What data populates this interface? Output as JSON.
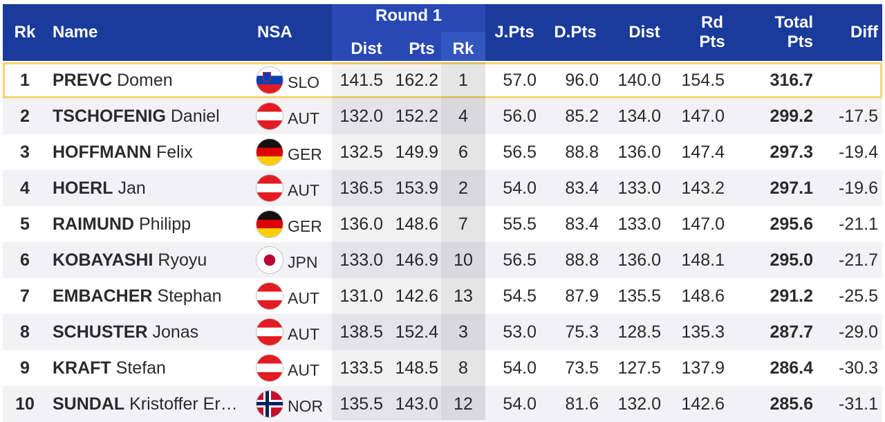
{
  "header": {
    "rk": "Rk",
    "name": "Name",
    "nsa": "NSA",
    "round1": "Round 1",
    "r1_dist": "Dist",
    "r1_pts": "Pts",
    "r1_rk": "Rk",
    "jpts": "J.Pts",
    "dpts": "D.Pts",
    "dist": "Dist",
    "rd_pts_1": "Rd",
    "rd_pts_2": "Pts",
    "total_1": "Total",
    "total_2": "Pts",
    "diff": "Diff"
  },
  "rows": [
    {
      "rk": "1",
      "last": "PREVC",
      "first": "Domen",
      "flag": "slo",
      "nsa": "SLO",
      "r1_dist": "141.5",
      "r1_pts": "162.2",
      "r1_rk": "1",
      "jpts": "57.0",
      "dpts": "96.0",
      "dist": "140.0",
      "rd_pts": "154.5",
      "total": "316.7",
      "diff": ""
    },
    {
      "rk": "2",
      "last": "TSCHOFENIG",
      "first": "Daniel",
      "flag": "aut",
      "nsa": "AUT",
      "r1_dist": "132.0",
      "r1_pts": "152.2",
      "r1_rk": "4",
      "jpts": "56.0",
      "dpts": "85.2",
      "dist": "134.0",
      "rd_pts": "147.0",
      "total": "299.2",
      "diff": "-17.5"
    },
    {
      "rk": "3",
      "last": "HOFFMANN",
      "first": "Felix",
      "flag": "ger",
      "nsa": "GER",
      "r1_dist": "132.5",
      "r1_pts": "149.9",
      "r1_rk": "6",
      "jpts": "56.5",
      "dpts": "88.8",
      "dist": "136.0",
      "rd_pts": "147.4",
      "total": "297.3",
      "diff": "-19.4"
    },
    {
      "rk": "4",
      "last": "HOERL",
      "first": "Jan",
      "flag": "aut",
      "nsa": "AUT",
      "r1_dist": "136.5",
      "r1_pts": "153.9",
      "r1_rk": "2",
      "jpts": "54.0",
      "dpts": "83.4",
      "dist": "133.0",
      "rd_pts": "143.2",
      "total": "297.1",
      "diff": "-19.6"
    },
    {
      "rk": "5",
      "last": "RAIMUND",
      "first": "Philipp",
      "flag": "ger",
      "nsa": "GER",
      "r1_dist": "136.0",
      "r1_pts": "148.6",
      "r1_rk": "7",
      "jpts": "55.5",
      "dpts": "83.4",
      "dist": "133.0",
      "rd_pts": "147.0",
      "total": "295.6",
      "diff": "-21.1"
    },
    {
      "rk": "6",
      "last": "KOBAYASHI",
      "first": "Ryoyu",
      "flag": "jpn",
      "nsa": "JPN",
      "r1_dist": "133.0",
      "r1_pts": "146.9",
      "r1_rk": "10",
      "jpts": "56.5",
      "dpts": "88.8",
      "dist": "136.0",
      "rd_pts": "148.1",
      "total": "295.0",
      "diff": "-21.7"
    },
    {
      "rk": "7",
      "last": "EMBACHER",
      "first": "Stephan",
      "flag": "aut",
      "nsa": "AUT",
      "r1_dist": "131.0",
      "r1_pts": "142.6",
      "r1_rk": "13",
      "jpts": "54.5",
      "dpts": "87.9",
      "dist": "135.5",
      "rd_pts": "148.6",
      "total": "291.2",
      "diff": "-25.5"
    },
    {
      "rk": "8",
      "last": "SCHUSTER",
      "first": "Jonas",
      "flag": "aut",
      "nsa": "AUT",
      "r1_dist": "138.5",
      "r1_pts": "152.4",
      "r1_rk": "3",
      "jpts": "53.0",
      "dpts": "75.3",
      "dist": "128.5",
      "rd_pts": "135.3",
      "total": "287.7",
      "diff": "-29.0"
    },
    {
      "rk": "9",
      "last": "KRAFT",
      "first": "Stefan",
      "flag": "aut",
      "nsa": "AUT",
      "r1_dist": "133.5",
      "r1_pts": "148.5",
      "r1_rk": "8",
      "jpts": "54.0",
      "dpts": "73.5",
      "dist": "127.5",
      "rd_pts": "137.9",
      "total": "286.4",
      "diff": "-30.3"
    },
    {
      "rk": "10",
      "last": "SUNDAL",
      "first": "Kristoffer Er…",
      "flag": "nor",
      "nsa": "NOR",
      "r1_dist": "135.5",
      "r1_pts": "143.0",
      "r1_rk": "12",
      "jpts": "54.0",
      "dpts": "81.6",
      "dist": "132.0",
      "rd_pts": "142.6",
      "total": "285.6",
      "diff": "-31.1"
    }
  ],
  "colors": {
    "header_bg": "#1a3b9c",
    "round1_bg": "#2848b4",
    "highlight_border": "#f5d570",
    "row_alt": "#f2f2f6"
  }
}
